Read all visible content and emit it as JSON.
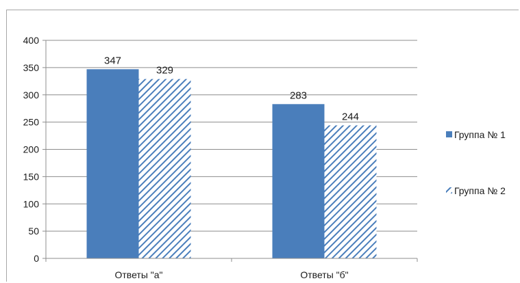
{
  "chart_data": {
    "type": "bar",
    "categories": [
      "Ответы \"а\"",
      "Ответы \"б\""
    ],
    "series": [
      {
        "name": "Группа № 1",
        "values": [
          347,
          283
        ],
        "color": "#4a7ebb",
        "pattern": "solid"
      },
      {
        "name": "Группа № 2",
        "values": [
          329,
          244
        ],
        "color": "#4a7ebb",
        "pattern": "diagonal-hatch"
      }
    ],
    "ylim": [
      0,
      400
    ],
    "yticks": [
      0,
      50,
      100,
      150,
      200,
      250,
      300,
      350,
      400
    ],
    "grid": true,
    "legend": "right",
    "data_labels": true
  }
}
